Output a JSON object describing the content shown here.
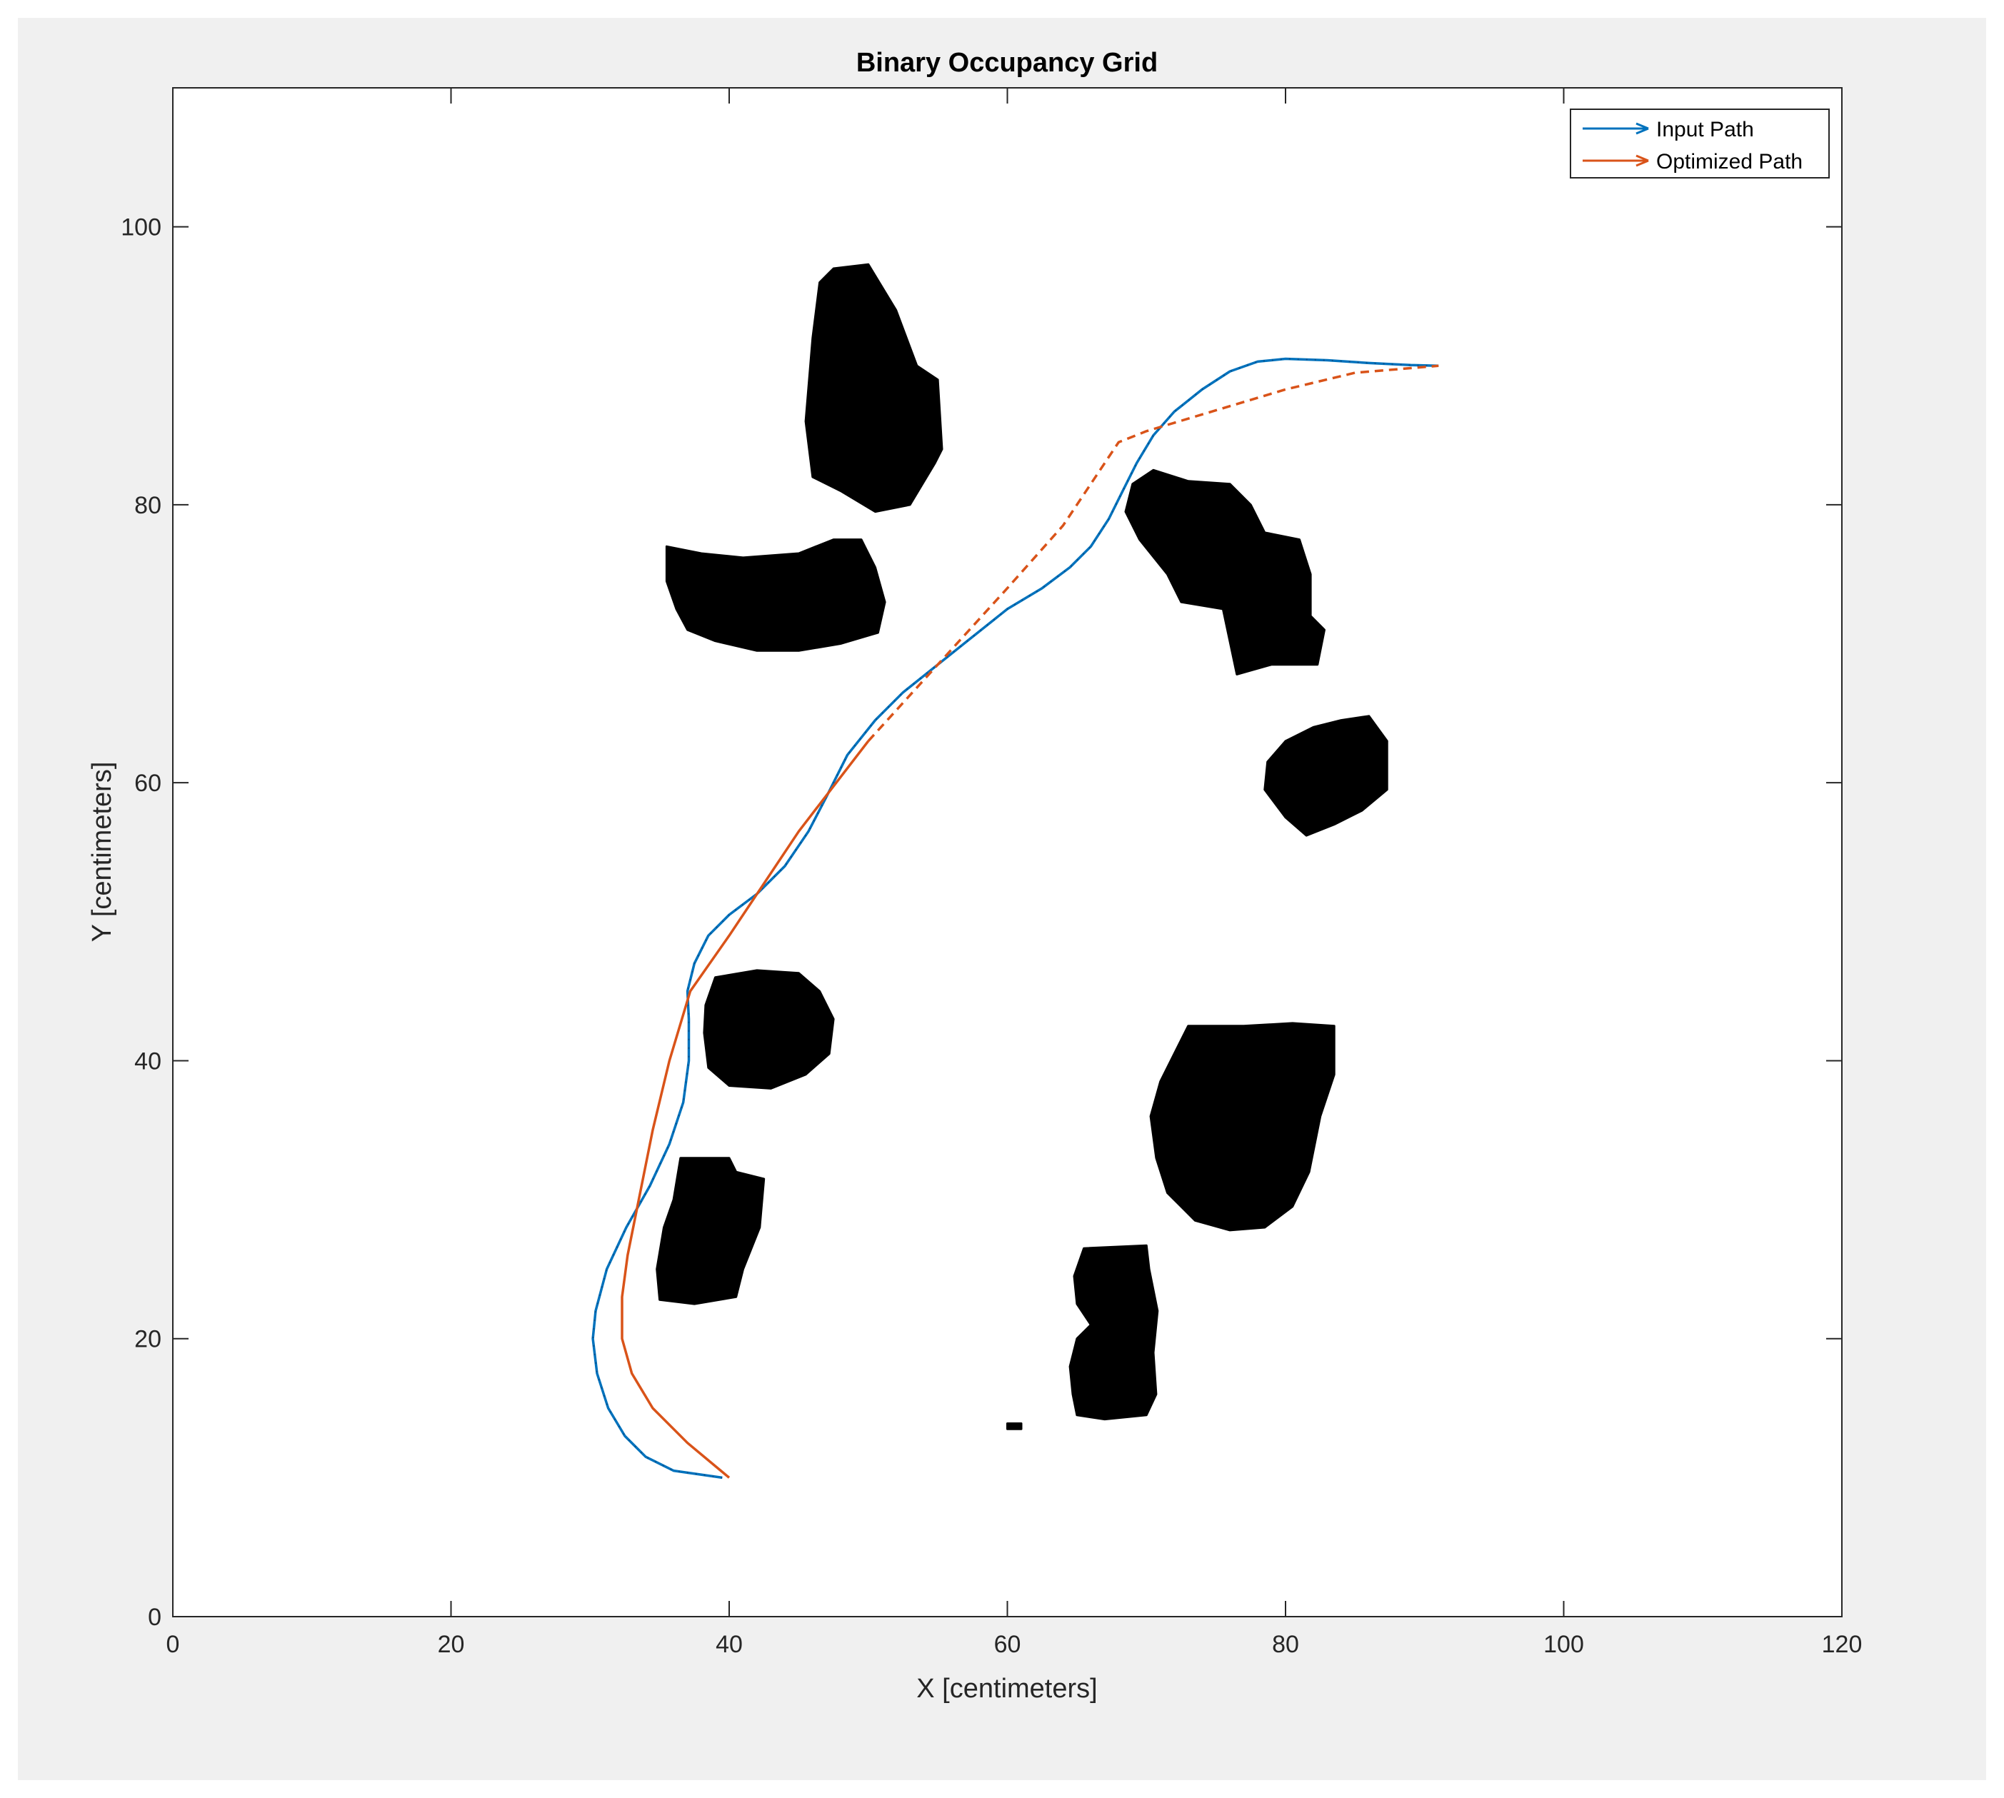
{
  "chart_data": {
    "type": "line",
    "title": "Binary Occupancy Grid",
    "xlabel": "X [centimeters]",
    "ylabel": "Y [centimeters]",
    "xlim": [
      0,
      120
    ],
    "ylim": [
      0,
      110
    ],
    "xticks": [
      0,
      20,
      40,
      60,
      80,
      100,
      120
    ],
    "yticks": [
      0,
      20,
      40,
      60,
      80,
      100
    ],
    "xtick_labels": [
      "0",
      "20",
      "40",
      "60",
      "80",
      "100",
      "120"
    ],
    "ytick_labels": [
      "0",
      "20",
      "40",
      "60",
      "80",
      "100"
    ],
    "grid": false,
    "legend_position": "top-right",
    "series": [
      {
        "name": "Input Path",
        "color": "#0072BD",
        "style": "solid-with-arrow",
        "points": [
          [
            39.5,
            10
          ],
          [
            36,
            10.5
          ],
          [
            34,
            11.5
          ],
          [
            32.5,
            13
          ],
          [
            31.3,
            15
          ],
          [
            30.5,
            17.5
          ],
          [
            30.2,
            20
          ],
          [
            30.4,
            22
          ],
          [
            31.2,
            25
          ],
          [
            32.6,
            28
          ],
          [
            34.3,
            31
          ],
          [
            35.7,
            34
          ],
          [
            36.7,
            37
          ],
          [
            37.1,
            40
          ],
          [
            37.1,
            43
          ],
          [
            37,
            45
          ],
          [
            37.5,
            47
          ],
          [
            38.5,
            49
          ],
          [
            40,
            50.5
          ],
          [
            42,
            52
          ],
          [
            44,
            54
          ],
          [
            45.7,
            56.5
          ],
          [
            47,
            59
          ],
          [
            48.5,
            62
          ],
          [
            50.5,
            64.5
          ],
          [
            52.5,
            66.5
          ],
          [
            55,
            68.5
          ],
          [
            57.5,
            70.5
          ],
          [
            60,
            72.5
          ],
          [
            62.5,
            74
          ],
          [
            64.5,
            75.5
          ],
          [
            66,
            77
          ],
          [
            67.3,
            79
          ],
          [
            68.3,
            81
          ],
          [
            69.3,
            83
          ],
          [
            70.5,
            85
          ],
          [
            72,
            86.7
          ],
          [
            74,
            88.3
          ],
          [
            76,
            89.6
          ],
          [
            78,
            90.3
          ],
          [
            80,
            90.5
          ],
          [
            83,
            90.4
          ],
          [
            86,
            90.2
          ],
          [
            89,
            90.05
          ],
          [
            91,
            90
          ]
        ]
      },
      {
        "name": "Optimized Path",
        "color": "#D95319",
        "style": "solid-then-dashed-with-arrow",
        "dashed_from_index": 13,
        "points": [
          [
            40,
            10
          ],
          [
            37,
            12.5
          ],
          [
            34.5,
            15
          ],
          [
            33,
            17.5
          ],
          [
            32.3,
            20
          ],
          [
            32.3,
            23
          ],
          [
            32.7,
            26
          ],
          [
            33.5,
            30
          ],
          [
            34.5,
            35
          ],
          [
            35.7,
            40
          ],
          [
            37.2,
            45
          ],
          [
            40,
            49
          ],
          [
            45,
            56.5
          ],
          [
            50,
            63
          ],
          [
            55,
            68.5
          ],
          [
            60,
            74
          ],
          [
            64,
            78.5
          ],
          [
            68,
            84.5
          ],
          [
            70,
            85.3
          ],
          [
            75,
            86.8
          ],
          [
            80,
            88.3
          ],
          [
            85,
            89.5
          ],
          [
            91,
            90
          ]
        ]
      }
    ],
    "obstacles": [
      {
        "name": "obstacle-top-center",
        "color": "#000000",
        "points": [
          [
            47.5,
            97
          ],
          [
            50,
            97.3
          ],
          [
            52,
            94
          ],
          [
            53.5,
            90
          ],
          [
            55,
            89
          ],
          [
            55.3,
            84
          ],
          [
            54.8,
            83
          ],
          [
            53,
            80
          ],
          [
            50.5,
            79.5
          ],
          [
            48,
            81
          ],
          [
            46,
            82
          ],
          [
            45.5,
            86
          ],
          [
            46,
            92
          ],
          [
            46.5,
            96
          ]
        ]
      },
      {
        "name": "obstacle-upper-left",
        "color": "#000000",
        "points": [
          [
            35.5,
            77
          ],
          [
            38,
            76.5
          ],
          [
            41,
            76.2
          ],
          [
            45,
            76.5
          ],
          [
            47.5,
            77.5
          ],
          [
            49.5,
            77.5
          ],
          [
            50.5,
            75.5
          ],
          [
            51.2,
            73
          ],
          [
            50.7,
            70.8
          ],
          [
            48,
            70
          ],
          [
            45,
            69.5
          ],
          [
            42,
            69.5
          ],
          [
            39,
            70.2
          ],
          [
            37,
            71
          ],
          [
            36.2,
            72.5
          ],
          [
            35.5,
            74.5
          ]
        ]
      },
      {
        "name": "obstacle-right-upper",
        "color": "#000000",
        "points": [
          [
            70.5,
            82.5
          ],
          [
            73,
            81.7
          ],
          [
            76,
            81.5
          ],
          [
            77.5,
            80
          ],
          [
            78.5,
            78
          ],
          [
            81,
            77.5
          ],
          [
            81.8,
            75
          ],
          [
            81.8,
            72
          ],
          [
            82.8,
            71
          ],
          [
            82.3,
            68.5
          ],
          [
            79,
            68.5
          ],
          [
            76.5,
            67.8
          ],
          [
            75.5,
            72.5
          ],
          [
            72.5,
            73
          ],
          [
            71.5,
            75
          ],
          [
            69.5,
            77.5
          ],
          [
            68.5,
            79.5
          ],
          [
            69,
            81.5
          ]
        ]
      },
      {
        "name": "obstacle-right-mid",
        "color": "#000000",
        "points": [
          [
            84,
            64.5
          ],
          [
            86,
            64.8
          ],
          [
            87.3,
            63
          ],
          [
            87.3,
            59.5
          ],
          [
            85.5,
            58
          ],
          [
            83.5,
            57
          ],
          [
            81.5,
            56.2
          ],
          [
            80,
            57.5
          ],
          [
            78.5,
            59.5
          ],
          [
            78.7,
            61.5
          ],
          [
            80,
            63
          ],
          [
            82,
            64
          ]
        ]
      },
      {
        "name": "obstacle-left-mid",
        "color": "#000000",
        "points": [
          [
            39,
            46
          ],
          [
            42,
            46.5
          ],
          [
            45,
            46.3
          ],
          [
            46.5,
            45
          ],
          [
            47.5,
            43
          ],
          [
            47.2,
            40.5
          ],
          [
            45.5,
            39
          ],
          [
            43,
            38
          ],
          [
            40,
            38.2
          ],
          [
            38.5,
            39.5
          ],
          [
            38.2,
            42
          ],
          [
            38.3,
            44
          ]
        ]
      },
      {
        "name": "obstacle-lower-left",
        "color": "#000000",
        "points": [
          [
            36.5,
            33
          ],
          [
            40,
            33
          ],
          [
            40.5,
            32
          ],
          [
            42.5,
            31.5
          ],
          [
            42.2,
            28
          ],
          [
            41,
            25
          ],
          [
            40.5,
            23
          ],
          [
            37.5,
            22.5
          ],
          [
            35,
            22.8
          ],
          [
            34.8,
            25
          ],
          [
            35.3,
            28
          ],
          [
            36,
            30
          ]
        ]
      },
      {
        "name": "obstacle-lower-right",
        "color": "#000000",
        "points": [
          [
            73,
            42.5
          ],
          [
            77,
            42.5
          ],
          [
            80.5,
            42.7
          ],
          [
            83.5,
            42.5
          ],
          [
            83.5,
            39
          ],
          [
            82.5,
            36
          ],
          [
            81.7,
            32
          ],
          [
            80.5,
            29.5
          ],
          [
            78.5,
            28
          ],
          [
            76,
            27.8
          ],
          [
            73.5,
            28.5
          ],
          [
            71.5,
            30.5
          ],
          [
            70.7,
            33
          ],
          [
            70.3,
            36
          ],
          [
            71,
            38.5
          ],
          [
            72,
            40.5
          ]
        ]
      },
      {
        "name": "obstacle-bottom-center",
        "color": "#000000",
        "points": [
          [
            65.5,
            26.5
          ],
          [
            70,
            26.7
          ],
          [
            70.2,
            25
          ],
          [
            70.8,
            22
          ],
          [
            70.5,
            19
          ],
          [
            70.7,
            16
          ],
          [
            70,
            14.5
          ],
          [
            67,
            14.2
          ],
          [
            65,
            14.5
          ],
          [
            64.7,
            16
          ],
          [
            64.5,
            18
          ],
          [
            65,
            20
          ],
          [
            66,
            21
          ],
          [
            65,
            22.5
          ],
          [
            64.8,
            24.5
          ]
        ]
      },
      {
        "name": "obstacle-speck",
        "color": "#000000",
        "points": [
          [
            60,
            13.9
          ],
          [
            61,
            13.9
          ],
          [
            61,
            13.5
          ],
          [
            60,
            13.5
          ]
        ]
      }
    ]
  }
}
